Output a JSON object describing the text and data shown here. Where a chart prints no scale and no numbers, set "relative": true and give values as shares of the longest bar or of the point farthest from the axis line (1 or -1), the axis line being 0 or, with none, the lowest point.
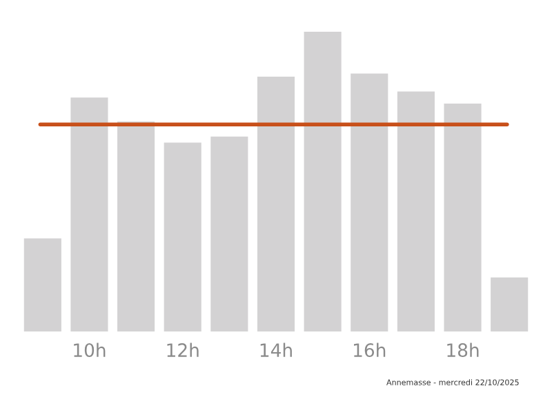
{
  "chart_data": {
    "type": "bar",
    "relative": true,
    "categories": [
      null,
      "10h",
      null,
      "12h",
      null,
      "14h",
      null,
      "16h",
      null,
      "18h",
      null
    ],
    "values": [
      0.31,
      0.78,
      0.7,
      0.63,
      0.65,
      0.85,
      1,
      0.86,
      0.8,
      0.76,
      0.18
    ],
    "color": "#d3d2d3",
    "ref_lines": [
      {
        "axis": "y",
        "value": 0.69,
        "color": "#c8501a",
        "line_style": "solid"
      }
    ],
    "annotations": [
      "Annemasse - mercredi 22/10/2025"
    ],
    "grid": false,
    "legend": false
  }
}
